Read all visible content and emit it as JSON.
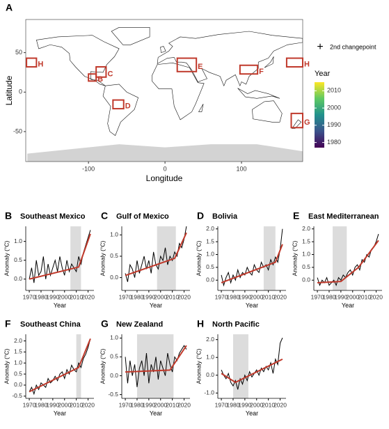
{
  "chart_data": [
    {
      "type": "map",
      "panel": "A",
      "xlabel": "Longitude",
      "ylabel": "Latitude",
      "xlim": [
        -182,
        180
      ],
      "ylim": [
        -88,
        92
      ],
      "xticks": [
        -100,
        0,
        100
      ],
      "yticks": [
        -50,
        0,
        50
      ],
      "regions": [
        {
          "label": "B",
          "lon": [
            -100,
            -90
          ],
          "lat": [
            14,
            23
          ]
        },
        {
          "label": "C",
          "lon": [
            -90,
            -77
          ],
          "lat": [
            19,
            32
          ]
        },
        {
          "label": "D",
          "lon": [
            -68,
            -54
          ],
          "lat": [
            -21,
            -10
          ]
        },
        {
          "label": "E",
          "lon": [
            16,
            41
          ],
          "lat": [
            26,
            43
          ]
        },
        {
          "label": "F",
          "lon": [
            98,
            121
          ],
          "lat": [
            23,
            34
          ]
        },
        {
          "label": "G",
          "lon": [
            165,
            180
          ],
          "lat": [
            -45,
            -27
          ]
        },
        {
          "label": "H",
          "lon": [
            159,
            180
          ],
          "lat": [
            32,
            43
          ]
        },
        {
          "label": "H",
          "lon": [
            -181,
            -168
          ],
          "lat": [
            32,
            43
          ]
        }
      ],
      "region_color": "#c0392b",
      "changepoint_marker": "+",
      "changepoint_label": "2nd changepoint",
      "colorbar": {
        "title": "Year",
        "lim": [
          1977,
          2015
        ],
        "ticks": [
          1980,
          1990,
          2000,
          2010
        ],
        "colors": [
          "#440154",
          "#3b528b",
          "#21918c",
          "#5ec962",
          "#fde725"
        ]
      }
    },
    {
      "type": "line",
      "panel": "B",
      "title": "Southeast Mexico",
      "xlabel": "Year",
      "ylabel": "Anomaly (°C)",
      "xlim": [
        1967,
        2025
      ],
      "ylim": [
        -0.3,
        1.4
      ],
      "xticks": [
        1970,
        1980,
        1990,
        2000,
        2010,
        2020
      ],
      "yticks": [
        {
          "value": 0,
          "label": "0.0"
        },
        0.5,
        {
          "value": 1,
          "label": "1.0"
        }
      ],
      "shaded_x": [
        2005,
        2014
      ],
      "shade_color": "#dcdcdc",
      "color": "#000000",
      "x": [
        1970,
        1972,
        1974,
        1976,
        1978,
        1980,
        1982,
        1984,
        1986,
        1988,
        1990,
        1992,
        1994,
        1996,
        1998,
        2000,
        2002,
        2004,
        2006,
        2008,
        2010,
        2012,
        2014,
        2016,
        2018,
        2020,
        2022
      ],
      "values": [
        0.0,
        0.3,
        -0.1,
        0.5,
        0.1,
        0.2,
        0.6,
        0.0,
        0.4,
        0.1,
        0.3,
        0.5,
        0.2,
        0.6,
        0.3,
        0.1,
        0.5,
        0.2,
        0.4,
        0.3,
        0.2,
        0.6,
        0.4,
        0.7,
        0.9,
        1.1,
        1.3
      ],
      "fit": {
        "x": [
          1970,
          2012,
          2022
        ],
        "values": [
          0.0,
          0.32,
          1.2
        ],
        "color": "#c0392b"
      }
    },
    {
      "type": "line",
      "panel": "C",
      "title": "Gulf of Mexico",
      "xlabel": "Year",
      "ylabel": "Anomaly (°C)",
      "xlim": [
        1967,
        2025
      ],
      "ylim": [
        -0.3,
        1.2
      ],
      "xticks": [
        1970,
        1980,
        1990,
        2000,
        2010,
        2020
      ],
      "yticks": [
        {
          "value": 0,
          "label": "0.0"
        },
        0.5,
        {
          "value": 1,
          "label": "1.0"
        }
      ],
      "shaded_x": [
        1997,
        2013
      ],
      "shade_color": "#dcdcdc",
      "color": "#000000",
      "x": [
        1970,
        1972,
        1974,
        1976,
        1978,
        1980,
        1982,
        1984,
        1986,
        1988,
        1990,
        1992,
        1994,
        1996,
        1998,
        2000,
        2002,
        2004,
        2006,
        2008,
        2010,
        2012,
        2014,
        2016,
        2018,
        2020,
        2022
      ],
      "values": [
        0.1,
        -0.1,
        0.3,
        0.2,
        0.0,
        0.4,
        0.1,
        0.3,
        0.5,
        0.2,
        0.4,
        0.1,
        0.6,
        0.3,
        0.2,
        0.5,
        0.4,
        0.7,
        0.3,
        0.5,
        0.4,
        0.6,
        0.5,
        0.8,
        0.7,
        0.9,
        1.2
      ],
      "fit": {
        "x": [
          1970,
          2012,
          2022
        ],
        "values": [
          0.05,
          0.45,
          1.05
        ],
        "color": "#c0392b"
      }
    },
    {
      "type": "line",
      "panel": "D",
      "title": "Bolivia",
      "xlabel": "Year",
      "ylabel": "Anomaly (°C)",
      "xlim": [
        1967,
        2025
      ],
      "ylim": [
        -0.4,
        2.1
      ],
      "xticks": [
        1970,
        1980,
        1990,
        2000,
        2010,
        2020
      ],
      "yticks": [
        {
          "value": 0,
          "label": "0.0"
        },
        0.5,
        {
          "value": 1,
          "label": "1.0"
        },
        1.5,
        {
          "value": 2,
          "label": "2.0"
        }
      ],
      "shaded_x": [
        2006,
        2016
      ],
      "shade_color": "#dcdcdc",
      "color": "#000000",
      "x": [
        1970,
        1972,
        1974,
        1976,
        1978,
        1980,
        1982,
        1984,
        1986,
        1988,
        1990,
        1992,
        1994,
        1996,
        1998,
        2000,
        2002,
        2004,
        2006,
        2008,
        2010,
        2012,
        2014,
        2016,
        2018,
        2020,
        2022
      ],
      "values": [
        0.2,
        -0.2,
        0.1,
        0.3,
        -0.1,
        0.2,
        0.0,
        0.4,
        0.1,
        0.3,
        0.2,
        0.5,
        0.3,
        0.2,
        0.6,
        0.4,
        0.3,
        0.7,
        0.5,
        0.6,
        0.4,
        0.8,
        0.6,
        0.9,
        0.7,
        1.2,
        2.0
      ],
      "fit": {
        "x": [
          1970,
          2016,
          2022
        ],
        "values": [
          -0.1,
          0.7,
          1.4
        ],
        "color": "#c0392b"
      }
    },
    {
      "type": "line",
      "panel": "E",
      "title": "East Mediterranean",
      "xlabel": "Year",
      "ylabel": "Anomaly (°C)",
      "xlim": [
        1967,
        2025
      ],
      "ylim": [
        -0.4,
        2.1
      ],
      "xticks": [
        1970,
        1980,
        1990,
        2000,
        2010,
        2020
      ],
      "yticks": [
        {
          "value": 0,
          "label": "0.0"
        },
        0.5,
        {
          "value": 1,
          "label": "1.0"
        },
        1.5,
        {
          "value": 2,
          "label": "2.0"
        }
      ],
      "shaded_x": [
        1983,
        1995
      ],
      "shade_color": "#dcdcdc",
      "color": "#000000",
      "x": [
        1970,
        1972,
        1974,
        1976,
        1978,
        1980,
        1982,
        1984,
        1986,
        1988,
        1990,
        1992,
        1994,
        1996,
        1998,
        2000,
        2002,
        2004,
        2006,
        2008,
        2010,
        2012,
        2014,
        2016,
        2018,
        2020,
        2022
      ],
      "values": [
        0.1,
        -0.2,
        0.0,
        -0.1,
        0.1,
        -0.2,
        -0.1,
        0.0,
        -0.2,
        0.1,
        0.0,
        0.2,
        0.1,
        0.3,
        0.4,
        0.2,
        0.5,
        0.6,
        0.4,
        0.8,
        0.7,
        1.0,
        0.9,
        1.2,
        1.3,
        1.5,
        1.8
      ],
      "fit": {
        "x": [
          1970,
          1990,
          2005,
          2022
        ],
        "values": [
          -0.1,
          -0.05,
          0.5,
          1.55
        ],
        "color": "#c0392b"
      }
    },
    {
      "type": "line",
      "panel": "F",
      "title": "Southeast China",
      "xlabel": "Year",
      "ylabel": "Anomaly (°C)",
      "xlim": [
        1967,
        2025
      ],
      "ylim": [
        -0.6,
        2.3
      ],
      "xticks": [
        1970,
        1980,
        1990,
        2000,
        2010,
        2020
      ],
      "yticks": [
        -0.5,
        {
          "value": 0,
          "label": "0.0"
        },
        0.5,
        {
          "value": 1,
          "label": "1.0"
        },
        1.5,
        {
          "value": 2,
          "label": "2.0"
        }
      ],
      "shaded_x": [
        2010,
        2014
      ],
      "shade_color": "#dcdcdc",
      "color": "#000000",
      "x": [
        1970,
        1972,
        1974,
        1976,
        1978,
        1980,
        1982,
        1984,
        1986,
        1988,
        1990,
        1992,
        1994,
        1996,
        1998,
        2000,
        2002,
        2004,
        2006,
        2008,
        2010,
        2012,
        2014,
        2016,
        2018,
        2020,
        2022
      ],
      "values": [
        -0.3,
        -0.1,
        -0.4,
        0.0,
        -0.2,
        0.1,
        0.0,
        -0.1,
        0.3,
        0.1,
        0.2,
        0.4,
        0.2,
        0.5,
        0.6,
        0.3,
        0.7,
        0.5,
        0.9,
        0.7,
        0.6,
        1.0,
        0.8,
        1.2,
        1.4,
        1.7,
        2.1
      ],
      "fit": {
        "x": [
          1970,
          2012,
          2022
        ],
        "values": [
          -0.3,
          0.8,
          2.1
        ],
        "color": "#c0392b"
      }
    },
    {
      "type": "line",
      "panel": "G",
      "title": "New Zealand",
      "xlabel": "Year",
      "ylabel": "Anomaly (°C)",
      "xlim": [
        1967,
        2025
      ],
      "ylim": [
        -0.6,
        1.1
      ],
      "xticks": [
        1970,
        1980,
        1990,
        2000,
        2010,
        2020
      ],
      "yticks": [
        -0.5,
        {
          "value": 0,
          "label": "0.0"
        },
        0.5,
        {
          "value": 1,
          "label": "1.0"
        }
      ],
      "shaded_x": [
        1980,
        2011
      ],
      "shade_color": "#dcdcdc",
      "color": "#000000",
      "x": [
        1970,
        1972,
        1974,
        1976,
        1978,
        1980,
        1982,
        1984,
        1986,
        1988,
        1990,
        1992,
        1994,
        1996,
        1998,
        2000,
        2002,
        2004,
        2006,
        2008,
        2010,
        2012,
        2014,
        2016,
        2018,
        2020,
        2022
      ],
      "values": [
        0.5,
        -0.2,
        0.4,
        0.0,
        0.3,
        -0.3,
        0.2,
        0.4,
        0.0,
        0.6,
        -0.2,
        0.3,
        0.1,
        0.5,
        -0.1,
        0.4,
        0.2,
        0.0,
        0.6,
        0.3,
        0.1,
        0.5,
        0.4,
        0.6,
        0.7,
        0.8,
        0.7
      ],
      "fit": {
        "x": [
          1970,
          2008,
          2022
        ],
        "values": [
          0.1,
          0.15,
          0.8
        ],
        "color": "#c0392b"
      }
    },
    {
      "type": "line",
      "panel": "H",
      "title": "North Pacific",
      "xlabel": "Year",
      "ylabel": "Anomaly (°C)",
      "xlim": [
        1967,
        2025
      ],
      "ylim": [
        -1.3,
        2.3
      ],
      "xticks": [
        1970,
        1980,
        1990,
        2000,
        2010,
        2020
      ],
      "yticks": [
        {
          "value": -1,
          "label": "-1.0"
        },
        {
          "value": 0,
          "label": "0.0"
        },
        {
          "value": 1,
          "label": "1.0"
        },
        {
          "value": 2,
          "label": "2.0"
        }
      ],
      "shaded_x": [
        1980,
        1993
      ],
      "shade_color": "#dcdcdc",
      "color": "#000000",
      "x": [
        1970,
        1972,
        1974,
        1976,
        1978,
        1980,
        1982,
        1984,
        1986,
        1988,
        1990,
        1992,
        1994,
        1996,
        1998,
        2000,
        2002,
        2004,
        2006,
        2008,
        2010,
        2012,
        2014,
        2016,
        2018,
        2020,
        2022
      ],
      "values": [
        0.3,
        0.0,
        -0.2,
        0.1,
        -0.4,
        -0.6,
        -0.3,
        -0.8,
        -0.2,
        -0.5,
        0.0,
        -0.3,
        0.2,
        -0.1,
        0.1,
        0.3,
        0.0,
        0.4,
        0.2,
        0.5,
        0.3,
        0.7,
        0.1,
        0.9,
        0.6,
        1.8,
        2.1
      ],
      "fit": {
        "x": [
          1970,
          1982,
          2022
        ],
        "values": [
          0.1,
          -0.4,
          0.9
        ],
        "color": "#c0392b"
      }
    }
  ]
}
